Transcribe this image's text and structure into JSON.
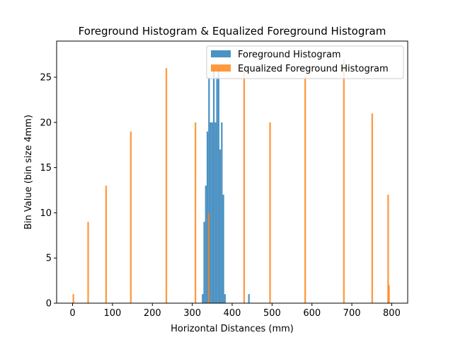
{
  "chart_data": {
    "type": "bar",
    "title": "Foreground Histogram & Equalized Foreground Histogram",
    "xlabel": "Horizontal Distances (mm)",
    "ylabel": "Bin Value (bin size 4mm)",
    "xlim": [
      -40,
      840
    ],
    "ylim": [
      0,
      29
    ],
    "xticks": [
      0,
      100,
      200,
      300,
      400,
      500,
      600,
      700,
      800
    ],
    "yticks": [
      0,
      5,
      10,
      15,
      20,
      25
    ],
    "bin_width": 4,
    "legend": {
      "position": "upper-right"
    },
    "series": [
      {
        "name": "Foreground Histogram",
        "color": "#1f77b4",
        "x": [
          324,
          328,
          332,
          336,
          340,
          344,
          348,
          352,
          356,
          360,
          364,
          368,
          372,
          376,
          380,
          440
        ],
        "values": [
          1,
          9,
          13,
          19,
          25,
          20,
          20,
          26,
          20,
          25,
          26,
          17,
          20,
          12,
          1,
          1
        ]
      },
      {
        "name": "Equalized Foreground Histogram",
        "color": "#ff7f0e",
        "x": [
          0,
          37,
          82,
          144,
          233,
          306,
          339,
          428,
          493,
          581,
          678,
          749,
          789,
          791
        ],
        "values": [
          1,
          9,
          13,
          19,
          26,
          20,
          10,
          26,
          20,
          25,
          27,
          21,
          12,
          2
        ]
      }
    ]
  }
}
